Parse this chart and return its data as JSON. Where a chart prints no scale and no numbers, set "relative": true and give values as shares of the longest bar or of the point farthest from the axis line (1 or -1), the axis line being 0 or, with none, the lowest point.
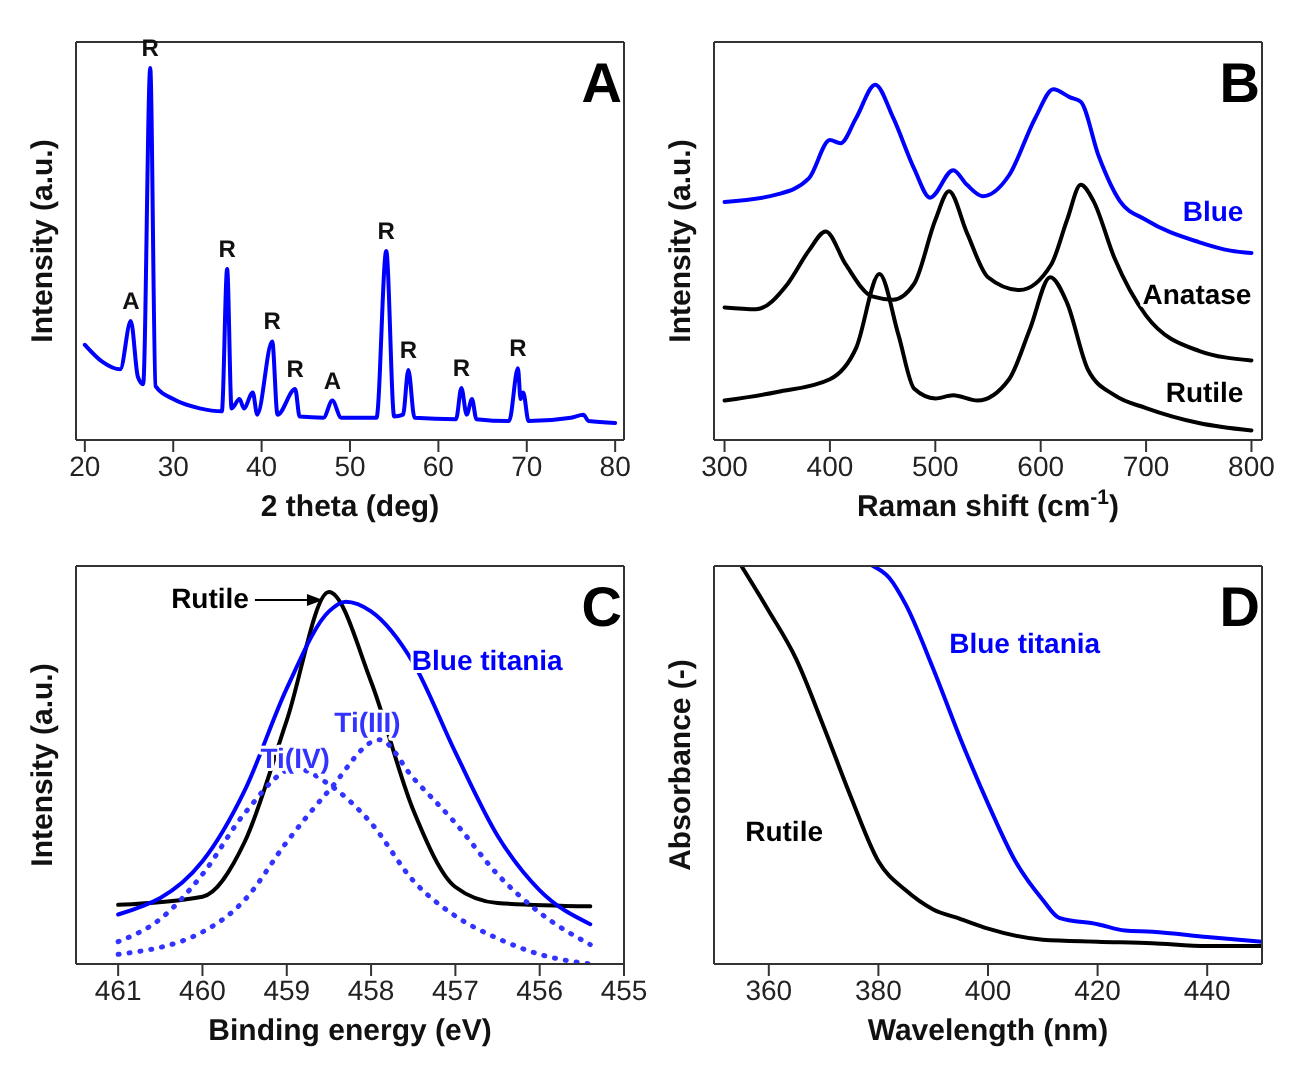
{
  "chart_data": [
    {
      "type": "line",
      "relative": true,
      "xlabel": "2 theta (deg)",
      "ylabel": "Intensity (a.u.)",
      "xlim": [
        19,
        81
      ],
      "xticks": [
        20,
        30,
        40,
        50,
        60,
        70,
        80
      ],
      "series": [
        {
          "color": "#0000ff",
          "x": [
            20,
            22,
            24,
            25.2,
            26,
            26.6,
            27.4,
            28,
            30,
            33,
            35.5,
            36.1,
            36.6,
            37.5,
            38,
            39,
            39.5,
            41.2,
            41.8,
            43.8,
            44.3,
            47,
            48,
            49,
            53,
            54.1,
            55,
            56,
            56.6,
            57.3,
            62,
            62.6,
            63.2,
            63.8,
            64.3,
            68,
            69,
            69.3,
            69.6,
            70.2,
            75,
            76.4,
            77,
            80
          ],
          "values": [
            0.256,
            0.21,
            0.19,
            0.32,
            0.17,
            0.15,
            1.0,
            0.145,
            0.11,
            0.085,
            0.077,
            0.46,
            0.085,
            0.11,
            0.085,
            0.128,
            0.068,
            0.265,
            0.068,
            0.137,
            0.063,
            0.06,
            0.106,
            0.06,
            0.06,
            0.508,
            0.063,
            0.068,
            0.188,
            0.06,
            0.056,
            0.14,
            0.068,
            0.11,
            0.056,
            0.051,
            0.193,
            0.11,
            0.128,
            0.051,
            0.06,
            0.068,
            0.051,
            0.046
          ]
        }
      ],
      "annotations": [
        "A",
        {
          "text": "A",
          "x": 25.2,
          "y": 0.32
        },
        {
          "text": "R",
          "x": 27.4,
          "y": 1.0
        },
        {
          "text": "R",
          "x": 36.1,
          "y": 0.46
        },
        {
          "text": "R",
          "x": 41.2,
          "y": 0.265
        },
        {
          "text": "R",
          "x": 43.8,
          "y": 0.137
        },
        {
          "text": "A",
          "x": 48,
          "y": 0.106
        },
        {
          "text": "R",
          "x": 54.1,
          "y": 0.508
        },
        {
          "text": "R",
          "x": 56.6,
          "y": 0.188
        },
        {
          "text": "R",
          "x": 62.6,
          "y": 0.14
        },
        {
          "text": "R",
          "x": 69,
          "y": 0.193
        }
      ]
    },
    {
      "type": "line",
      "relative": true,
      "xlabel": "Raman shift (cm$^{-1}$)",
      "ylabel": "Intensity (a.u.)",
      "xlim": [
        290,
        810
      ],
      "xticks": [
        300,
        400,
        500,
        600,
        700,
        800
      ],
      "series": [
        {
          "name": "Blue",
          "color": "#0000ff",
          "x": [
            300,
            350,
            380,
            400,
            410,
            425,
            443,
            460,
            480,
            495,
            517,
            530,
            545,
            570,
            595,
            612,
            628,
            638,
            655,
            675,
            700,
            750,
            780,
            800
          ],
          "values": [
            0.67,
            0.691,
            0.736,
            0.844,
            0.835,
            0.907,
            1.0,
            0.907,
            0.763,
            0.682,
            0.759,
            0.718,
            0.686,
            0.745,
            0.907,
            0.987,
            0.964,
            0.952,
            0.799,
            0.673,
            0.619,
            0.557,
            0.533,
            0.526
          ]
        },
        {
          "name": "Anatase",
          "color": "#000000",
          "x": [
            300,
            330,
            360,
            380,
            396,
            415,
            440,
            460,
            480,
            500,
            513,
            530,
            550,
            580,
            610,
            625,
            638,
            650,
            670,
            700,
            750,
            800
          ],
          "values": [
            0.373,
            0.368,
            0.44,
            0.533,
            0.587,
            0.494,
            0.404,
            0.395,
            0.44,
            0.619,
            0.7,
            0.583,
            0.458,
            0.422,
            0.494,
            0.619,
            0.718,
            0.673,
            0.512,
            0.35,
            0.251,
            0.224
          ]
        },
        {
          "name": "Rutile",
          "color": "#000000",
          "x": [
            300,
            350,
            400,
            425,
            447,
            465,
            480,
            500,
            517,
            540,
            570,
            590,
            609,
            625,
            645,
            670,
            700,
            750,
            800
          ],
          "values": [
            0.111,
            0.135,
            0.171,
            0.26,
            0.467,
            0.296,
            0.144,
            0.117,
            0.126,
            0.111,
            0.171,
            0.314,
            0.458,
            0.386,
            0.197,
            0.126,
            0.09,
            0.048,
            0.027
          ]
        }
      ],
      "annotations": [
        "B"
      ]
    },
    {
      "type": "line",
      "relative": true,
      "xlabel": "Binding energy (eV)",
      "ylabel": "Intensity (a.u.)",
      "xlim": [
        461.5,
        455
      ],
      "xticks": [
        461,
        460,
        459,
        458,
        457,
        456,
        455
      ],
      "series": [
        {
          "name": "Rutile",
          "color": "#000000",
          "x": [
            461,
            460,
            459.5,
            459,
            458.5,
            458,
            457.5,
            457,
            456.5,
            455.4
          ],
          "values": [
            0.159,
            0.181,
            0.328,
            0.655,
            1.0,
            0.759,
            0.414,
            0.207,
            0.164,
            0.155
          ]
        },
        {
          "name": "Blue titania",
          "color": "#0000ff",
          "x": [
            461,
            460,
            459.5,
            459,
            458.5,
            458.3,
            458,
            457.5,
            457,
            456.5,
            456,
            455.4
          ],
          "values": [
            0.133,
            0.276,
            0.466,
            0.741,
            0.948,
            0.974,
            0.948,
            0.81,
            0.569,
            0.345,
            0.198,
            0.107
          ]
        },
        {
          "name": "Ti(IV)",
          "color": "#3333ff",
          "line_style": "dotted",
          "x": [
            461,
            460.5,
            460,
            459.5,
            458.9,
            458.5,
            458,
            457.5,
            457,
            456.5,
            456,
            455.4
          ],
          "values": [
            0.06,
            0.121,
            0.241,
            0.405,
            0.526,
            0.483,
            0.379,
            0.224,
            0.129,
            0.069,
            0.026,
            0.0
          ]
        },
        {
          "name": "Ti(III)",
          "color": "#3333ff",
          "line_style": "dotted",
          "x": [
            461,
            460,
            459.5,
            459,
            458.5,
            457.9,
            457.5,
            457,
            456.5,
            456,
            455.4
          ],
          "values": [
            0.026,
            0.086,
            0.172,
            0.328,
            0.466,
            0.603,
            0.5,
            0.379,
            0.241,
            0.138,
            0.052
          ]
        }
      ],
      "annotations": [
        "C"
      ]
    },
    {
      "type": "line",
      "relative": true,
      "xlabel": "Wavelength (nm)",
      "ylabel": "Absorbance (-)",
      "xlim": [
        350,
        450
      ],
      "xticks": [
        360,
        380,
        400,
        420,
        440
      ],
      "series": [
        {
          "name": "Rutile",
          "color": "#000000",
          "x": [
            355,
            360,
            365,
            370,
            375,
            380,
            385,
            390,
            395,
            400,
            410,
            420,
            430,
            440,
            450
          ],
          "values": [
            1.0,
            0.887,
            0.766,
            0.597,
            0.419,
            0.258,
            0.185,
            0.137,
            0.113,
            0.089,
            0.061,
            0.056,
            0.052,
            0.045,
            0.045
          ]
        },
        {
          "name": "Blue titania",
          "color": "#0000ff",
          "x": [
            379,
            382,
            385,
            390,
            395,
            400,
            405,
            410,
            413,
            420,
            425,
            430,
            440,
            450
          ],
          "values": [
            1.0,
            0.97,
            0.903,
            0.742,
            0.565,
            0.403,
            0.258,
            0.161,
            0.116,
            0.1,
            0.084,
            0.081,
            0.068,
            0.056
          ]
        }
      ],
      "annotations": [
        "D"
      ]
    }
  ]
}
